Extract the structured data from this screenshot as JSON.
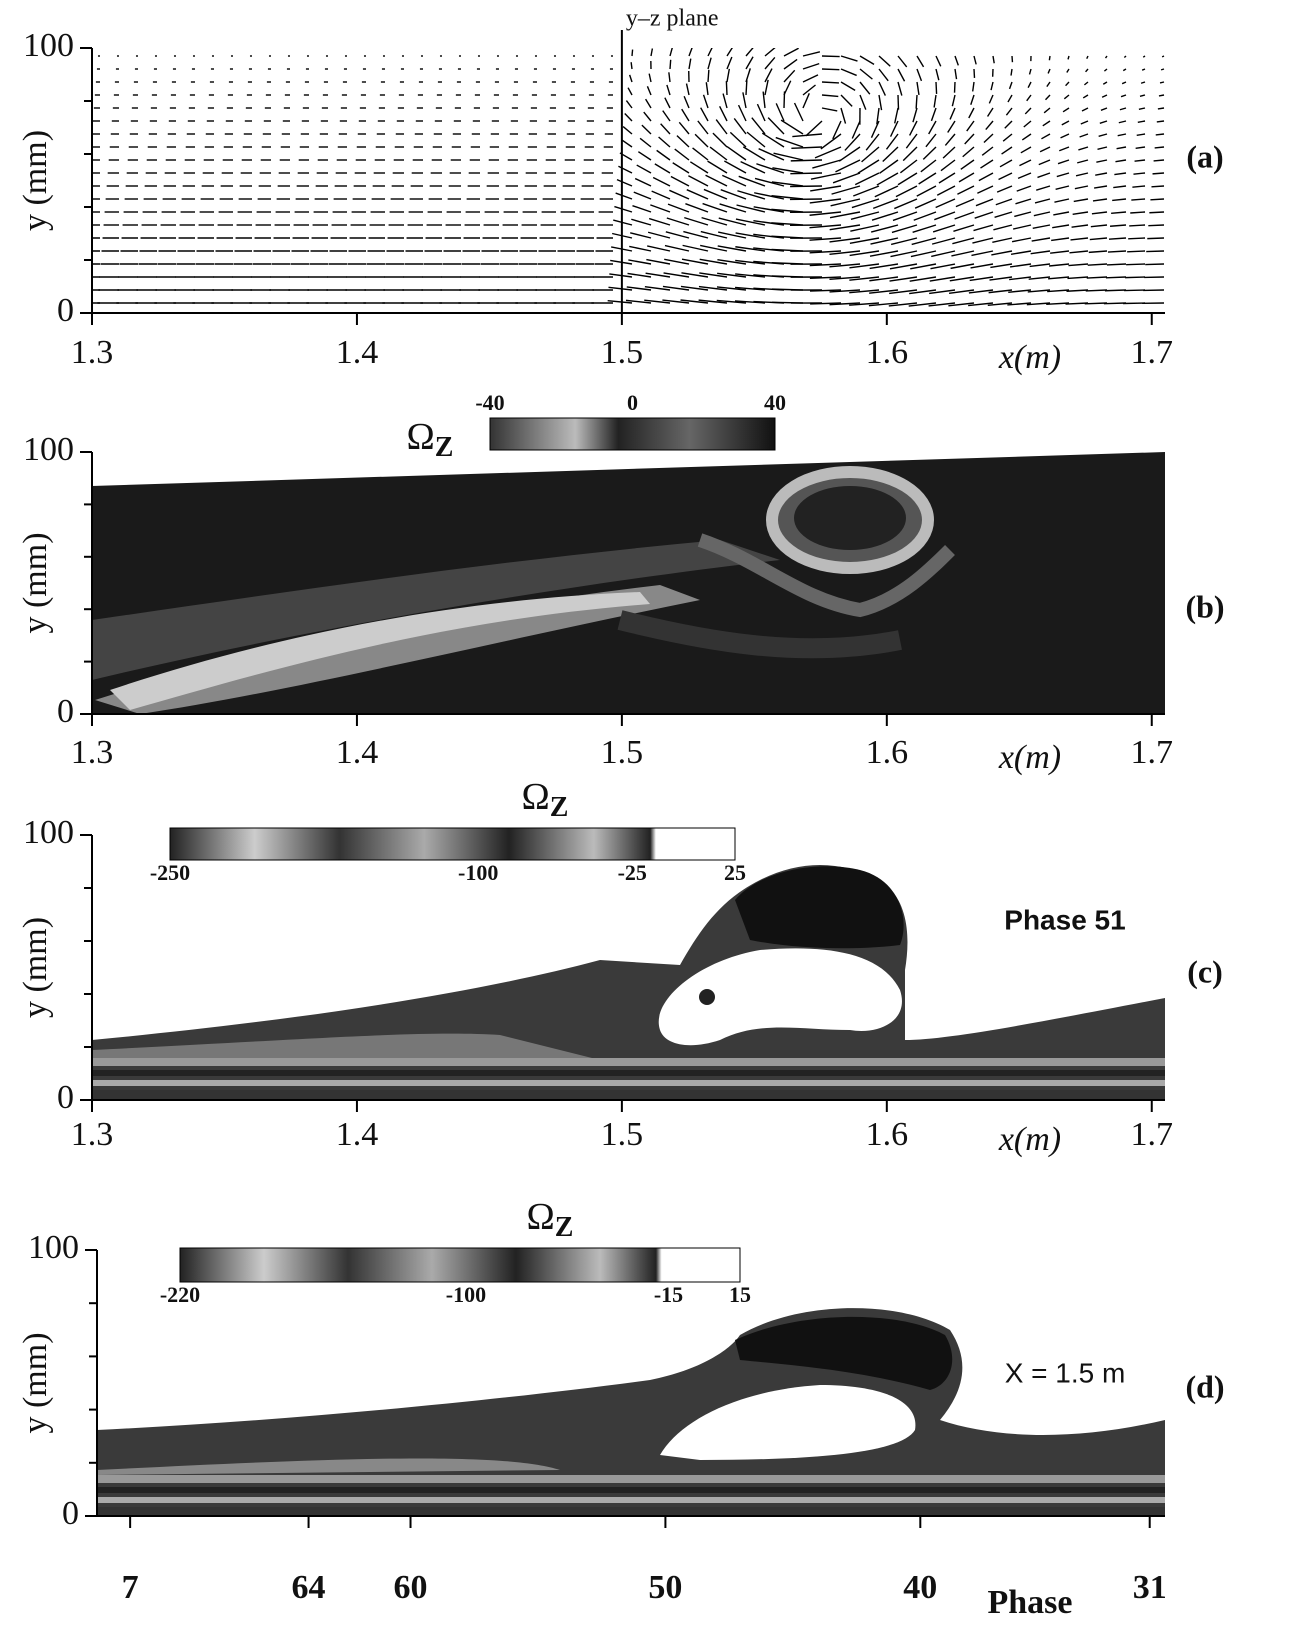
{
  "chart_data": [
    {
      "type": "vector",
      "label": "(a)",
      "annotation": "y–z plane",
      "x_label": "x(m)",
      "y_label": "y (mm)",
      "xlim": [
        1.3,
        1.705
      ],
      "ylim": [
        0,
        100
      ],
      "xticks": [
        1.3,
        1.4,
        1.5,
        1.6,
        1.7
      ],
      "yticks": [
        0,
        100
      ],
      "yminorticks": [
        20,
        40,
        60,
        80
      ],
      "plane_x": 1.5
    },
    {
      "type": "contour",
      "label": "(b)",
      "x_label": "x(m)",
      "y_label": "y (mm)",
      "xlim": [
        1.3,
        1.705
      ],
      "ylim": [
        0,
        100
      ],
      "xticks": [
        1.3,
        1.4,
        1.5,
        1.6,
        1.7
      ],
      "yticks": [
        0,
        100
      ],
      "yminorticks": [
        20,
        40,
        60,
        80
      ],
      "colorbar_title": "Ω",
      "colorbar_subscript": "Z",
      "clim": [
        -40,
        40
      ],
      "colorbar_ticks": [
        -40,
        0,
        40
      ]
    },
    {
      "type": "contour",
      "label": "(c)",
      "annotation": "Phase 51",
      "x_label": "x(m)",
      "y_label": "y (mm)",
      "xlim": [
        1.3,
        1.705
      ],
      "ylim": [
        0,
        100
      ],
      "xticks": [
        1.3,
        1.4,
        1.5,
        1.6,
        1.7
      ],
      "yticks": [
        0,
        100
      ],
      "yminorticks": [
        20,
        40,
        60,
        80
      ],
      "colorbar_title": "Ω",
      "colorbar_subscript": "Z",
      "clim": [
        -250,
        25
      ],
      "colorbar_ticks": [
        -250,
        -100,
        -25,
        25
      ]
    },
    {
      "type": "contour",
      "label": "(d)",
      "annotation": "X = 1.5 m",
      "x_label": "Phase",
      "y_label": "y (mm)",
      "xlim": [
        72.3,
        30.4
      ],
      "ylim": [
        0,
        100
      ],
      "xticks": [
        {
          "value": 71,
          "label": "7"
        },
        64,
        60,
        50,
        40,
        31
      ],
      "yticks": [
        0,
        100
      ],
      "yminorticks": [
        20,
        40,
        60,
        80
      ],
      "colorbar_title": "Ω",
      "colorbar_subscript": "Z",
      "clim": [
        -220,
        15
      ],
      "colorbar_ticks": [
        -220,
        -100,
        -15,
        15
      ]
    }
  ]
}
